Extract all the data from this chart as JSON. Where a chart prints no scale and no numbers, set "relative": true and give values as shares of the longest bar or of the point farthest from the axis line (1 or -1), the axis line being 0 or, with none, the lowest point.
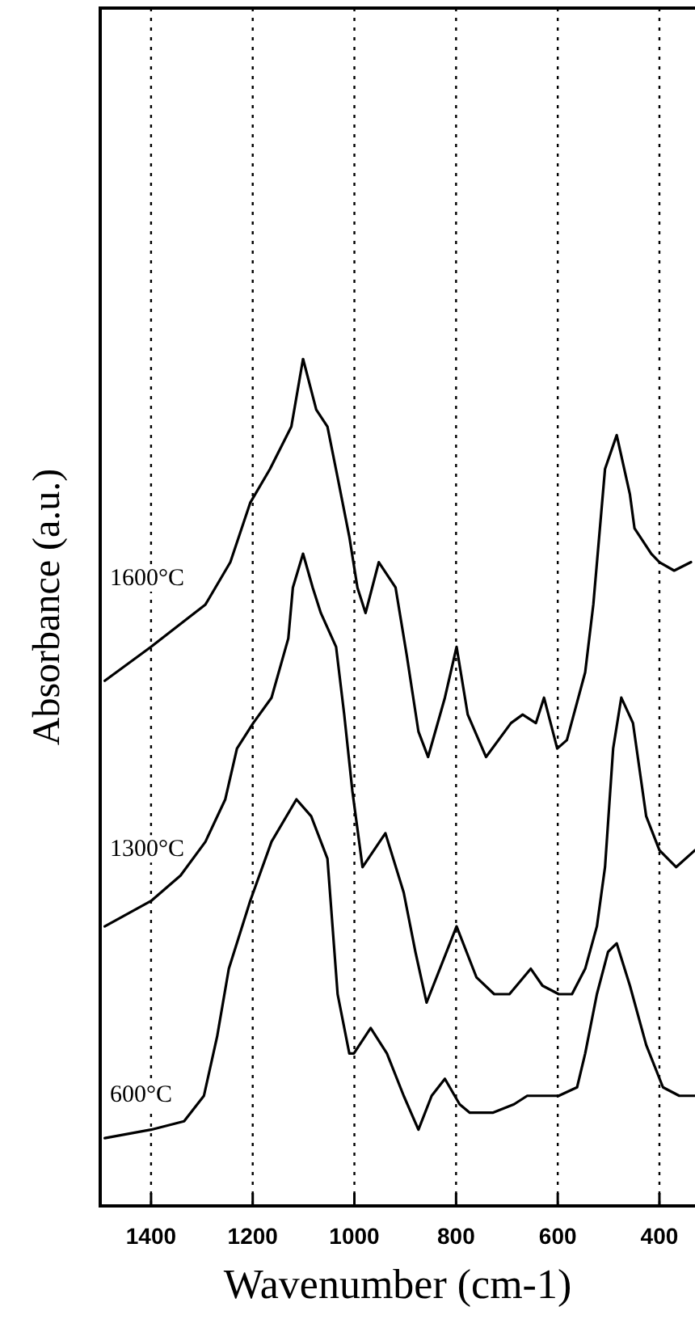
{
  "chart_data": {
    "type": "line",
    "xlabel": "Wavenumber (cm-1)",
    "ylabel": "Absorbance (a.u.)",
    "relative": true,
    "xlim": [
      1500,
      330
    ],
    "xticks": [
      1400,
      1200,
      1000,
      800,
      600,
      400
    ],
    "grid": "x",
    "legend": false,
    "marker": "none",
    "line_style": "solid",
    "series": [
      {
        "name": "1600°C",
        "color": "#000000",
        "x": [
          1491,
          1400,
          1293,
          1244,
          1205,
          1166,
          1124,
          1101,
          1075,
          1053,
          1033,
          1010,
          994,
          978,
          952,
          919,
          897,
          874,
          855,
          822,
          799,
          777,
          741,
          692,
          669,
          643,
          627,
          601,
          582,
          546,
          530,
          507,
          484,
          458,
          449,
          416,
          400,
          371,
          338
        ],
        "values": [
          0.62,
          0.66,
          0.71,
          0.76,
          0.83,
          0.87,
          0.92,
          1.0,
          0.94,
          0.92,
          0.86,
          0.79,
          0.73,
          0.7,
          0.76,
          0.73,
          0.65,
          0.56,
          0.53,
          0.6,
          0.66,
          0.58,
          0.53,
          0.57,
          0.58,
          0.57,
          0.6,
          0.54,
          0.55,
          0.63,
          0.71,
          0.87,
          0.91,
          0.84,
          0.8,
          0.77,
          0.76,
          0.75,
          0.76
        ]
      },
      {
        "name": "1300°C",
        "color": "#000000",
        "x": [
          1491,
          1400,
          1342,
          1293,
          1254,
          1231,
          1199,
          1163,
          1130,
          1121,
          1101,
          1082,
          1066,
          1036,
          1020,
          1004,
          984,
          939,
          903,
          880,
          858,
          799,
          760,
          725,
          695,
          653,
          630,
          598,
          572,
          546,
          523,
          507,
          491,
          475,
          452,
          426,
          400,
          367,
          330
        ],
        "values": [
          0.33,
          0.36,
          0.39,
          0.43,
          0.48,
          0.54,
          0.57,
          0.6,
          0.67,
          0.73,
          0.77,
          0.73,
          0.7,
          0.66,
          0.58,
          0.49,
          0.4,
          0.44,
          0.37,
          0.3,
          0.24,
          0.33,
          0.27,
          0.25,
          0.25,
          0.28,
          0.26,
          0.25,
          0.25,
          0.28,
          0.33,
          0.4,
          0.54,
          0.6,
          0.57,
          0.46,
          0.42,
          0.4,
          0.42
        ]
      },
      {
        "name": "600°C",
        "color": "#000000",
        "x": [
          1491,
          1400,
          1335,
          1296,
          1270,
          1247,
          1205,
          1163,
          1114,
          1085,
          1053,
          1033,
          1010,
          1001,
          968,
          936,
          903,
          874,
          848,
          822,
          793,
          773,
          728,
          686,
          660,
          598,
          562,
          546,
          523,
          501,
          484,
          458,
          426,
          393,
          361,
          330
        ],
        "values": [
          0.08,
          0.09,
          0.1,
          0.13,
          0.2,
          0.28,
          0.36,
          0.43,
          0.48,
          0.46,
          0.41,
          0.25,
          0.18,
          0.18,
          0.21,
          0.18,
          0.13,
          0.09,
          0.13,
          0.15,
          0.12,
          0.11,
          0.11,
          0.12,
          0.13,
          0.13,
          0.14,
          0.18,
          0.25,
          0.3,
          0.31,
          0.26,
          0.19,
          0.14,
          0.13,
          0.13
        ]
      }
    ]
  }
}
